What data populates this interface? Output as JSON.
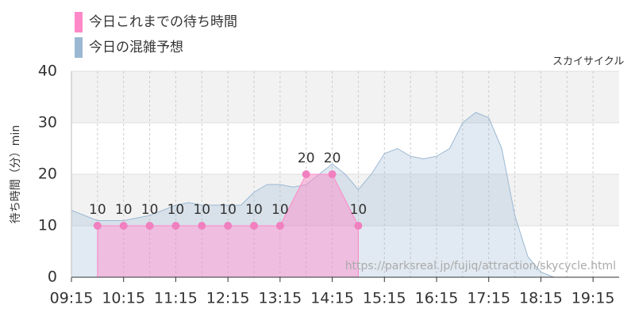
{
  "chart_data": {
    "type": "area",
    "subtitle": "スカイサイクル",
    "ylabel": "待ち時間（分）min",
    "watermark": "https://parksreal.jp/fujiq/attraction/skycycle.html",
    "xlim": [
      "09:15",
      "19:45"
    ],
    "xticks": [
      "09:15",
      "10:15",
      "11:15",
      "12:15",
      "13:15",
      "14:15",
      "15:15",
      "16:15",
      "17:15",
      "18:15",
      "19:15"
    ],
    "ylim": [
      0,
      40
    ],
    "yticks": [
      0,
      10,
      20,
      30,
      40
    ],
    "grid": true,
    "series": [
      {
        "name": "今日これまでの待ち時間",
        "color": "#ff88c8",
        "x": [
          "09:45",
          "10:15",
          "10:45",
          "11:15",
          "11:45",
          "12:15",
          "12:45",
          "13:15",
          "13:45",
          "14:15",
          "14:45"
        ],
        "values": [
          10,
          10,
          10,
          10,
          10,
          10,
          10,
          10,
          20,
          20,
          10
        ]
      },
      {
        "name": "今日の混雑予想",
        "color": "#9bb8d3",
        "x": [
          "09:15",
          "09:30",
          "09:45",
          "10:00",
          "10:15",
          "10:30",
          "10:45",
          "11:00",
          "11:15",
          "11:30",
          "11:45",
          "12:00",
          "12:15",
          "12:30",
          "12:45",
          "13:00",
          "13:15",
          "13:30",
          "13:45",
          "14:00",
          "14:15",
          "14:30",
          "14:45",
          "15:00",
          "15:15",
          "15:30",
          "15:45",
          "16:00",
          "16:15",
          "16:30",
          "16:45",
          "17:00",
          "17:15",
          "17:30",
          "17:45",
          "18:00",
          "18:15",
          "18:30",
          "18:45",
          "19:00",
          "19:15",
          "19:30",
          "19:45"
        ],
        "values": [
          13,
          12,
          11,
          11,
          11,
          11.5,
          12,
          13,
          14,
          14.5,
          14,
          14,
          14,
          14,
          16.5,
          18,
          18,
          17.5,
          18,
          20,
          22,
          20,
          17,
          20,
          24,
          25,
          23.5,
          23,
          23.5,
          25,
          30,
          32,
          31,
          25,
          12,
          4,
          1,
          0,
          0,
          0,
          0,
          0,
          0
        ]
      }
    ]
  }
}
